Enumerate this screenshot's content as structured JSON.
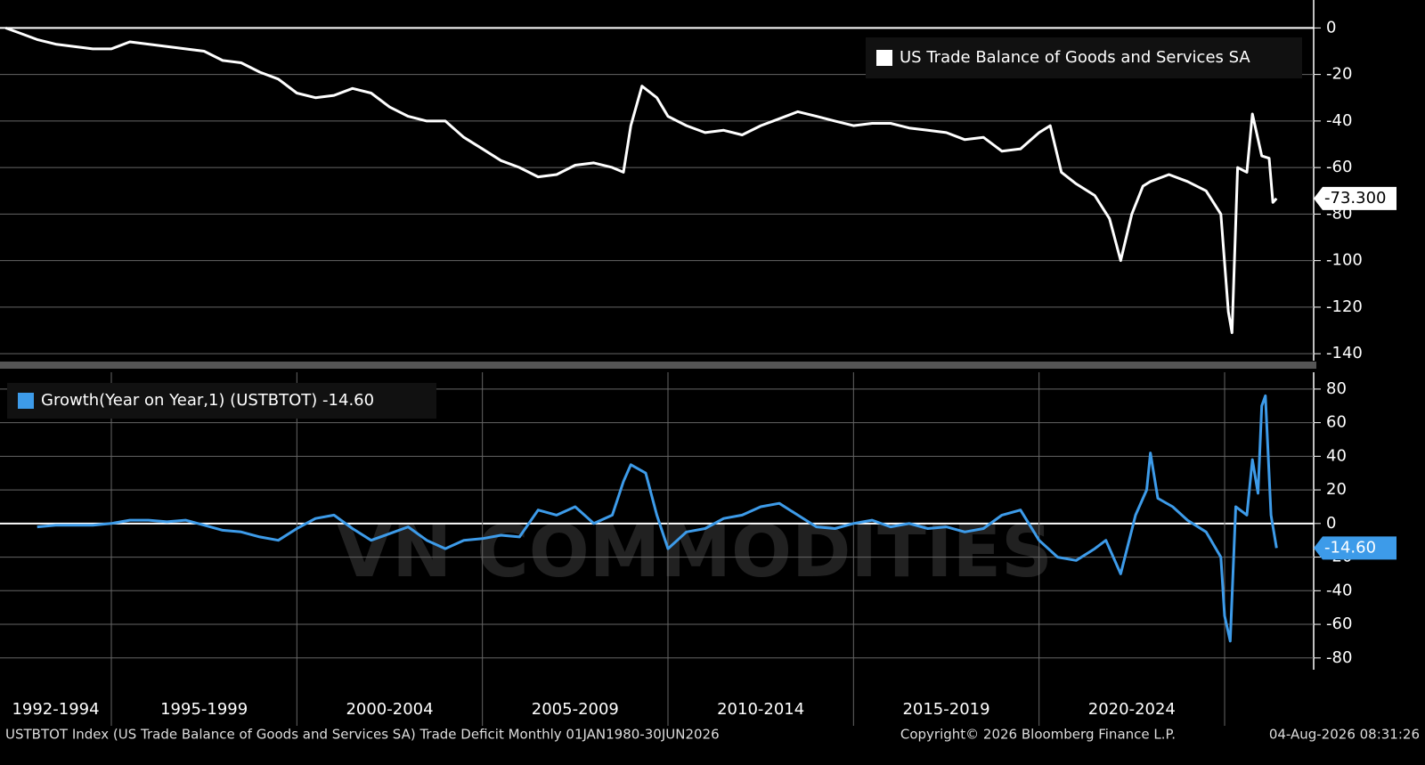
{
  "chart_data": [
    {
      "type": "line",
      "series": [
        {
          "name": "US Trade Balance of Goods and Services SA",
          "color": "#ffffff",
          "last_value_label": "-73.300",
          "x": [
            1992.15,
            1992.5,
            1993,
            1993.5,
            1994,
            1994.5,
            1995,
            1995.5,
            1996,
            1996.5,
            1997,
            1997.5,
            1998,
            1998.5,
            1999,
            1999.5,
            2000,
            2000.5,
            2001,
            2001.5,
            2002,
            2002.5,
            2003,
            2003.5,
            2004,
            2004.5,
            2005,
            2005.5,
            2006,
            2006.5,
            2007,
            2007.5,
            2008,
            2008.5,
            2008.8,
            2009,
            2009.3,
            2009.7,
            2010,
            2010.5,
            2011,
            2011.5,
            2012,
            2012.5,
            2013,
            2013.5,
            2014,
            2014.5,
            2015,
            2015.5,
            2016,
            2016.5,
            2017,
            2017.5,
            2018,
            2018.5,
            2019,
            2019.5,
            2020,
            2020.3,
            2020.6,
            2021,
            2021.5,
            2021.9,
            2022.2,
            2022.5,
            2022.8,
            2023,
            2023.5,
            2024,
            2024.5,
            2024.9,
            2025.1,
            2025.2,
            2025.35,
            2025.6,
            2025.75,
            2026,
            2026.2,
            2026.3,
            2026.4
          ],
          "values": [
            0,
            -2,
            -5,
            -7,
            -8,
            -9,
            -9,
            -6,
            -7,
            -8,
            -9,
            -10,
            -14,
            -15,
            -19,
            -22,
            -28,
            -30,
            -29,
            -26,
            -28,
            -34,
            -38,
            -40,
            -40,
            -47,
            -52,
            -57,
            -60,
            -64,
            -63,
            -59,
            -58,
            -60,
            -62,
            -42,
            -25,
            -30,
            -38,
            -42,
            -45,
            -44,
            -46,
            -42,
            -39,
            -36,
            -38,
            -40,
            -42,
            -41,
            -41,
            -43,
            -44,
            -45,
            -48,
            -47,
            -53,
            -52,
            -45,
            -42,
            -62,
            -67,
            -72,
            -82,
            -100,
            -80,
            -68,
            -66,
            -63,
            -66,
            -70,
            -80,
            -122,
            -131,
            -60,
            -62,
            -37,
            -55,
            -56,
            -75,
            -73.3
          ]
        }
      ],
      "xlim": [
        1992,
        2027.4
      ],
      "ylim": [
        -143,
        12
      ],
      "yticks": [
        0,
        -20,
        -40,
        -60,
        -80,
        -100,
        -120,
        -140
      ],
      "grid": true
    },
    {
      "type": "line",
      "series": [
        {
          "name": "Growth(Year on Year,1) (USTBTOT) -14.60",
          "color": "#3d9be9",
          "last_value_label": "-14.60",
          "x": [
            1993,
            1993.5,
            1994,
            1994.5,
            1995,
            1995.5,
            1996,
            1996.5,
            1997,
            1997.5,
            1998,
            1998.5,
            1999,
            1999.5,
            2000,
            2000.5,
            2001,
            2001.5,
            2002,
            2002.5,
            2003,
            2003.5,
            2004,
            2004.5,
            2005,
            2005.5,
            2006,
            2006.5,
            2007,
            2007.5,
            2008,
            2008.5,
            2008.8,
            2009,
            2009.4,
            2009.7,
            2010,
            2010.5,
            2011,
            2011.5,
            2012,
            2012.5,
            2013,
            2013.5,
            2014,
            2014.5,
            2015,
            2015.5,
            2016,
            2016.5,
            2017,
            2017.5,
            2018,
            2018.5,
            2019,
            2019.5,
            2020,
            2020.5,
            2021,
            2021.5,
            2021.8,
            2022.2,
            2022.6,
            2022.9,
            2023,
            2023.2,
            2023.6,
            2024,
            2024.5,
            2024.9,
            2025,
            2025.15,
            2025.3,
            2025.6,
            2025.75,
            2025.9,
            2026,
            2026.1,
            2026.25,
            2026.4
          ],
          "values": [
            -2,
            -1,
            -1,
            -1,
            0,
            2,
            2,
            1,
            2,
            -1,
            -4,
            -5,
            -8,
            -10,
            -3,
            3,
            5,
            -3,
            -10,
            -6,
            -2,
            -10,
            -15,
            -10,
            -9,
            -7,
            -8,
            8,
            5,
            10,
            0,
            5,
            25,
            35,
            30,
            5,
            -15,
            -5,
            -3,
            3,
            5,
            10,
            12,
            5,
            -2,
            -3,
            0,
            2,
            -2,
            0,
            -3,
            -2,
            -5,
            -3,
            5,
            8,
            -10,
            -20,
            -22,
            -15,
            -10,
            -30,
            5,
            20,
            42,
            15,
            10,
            2,
            -5,
            -20,
            -55,
            -70,
            10,
            5,
            38,
            18,
            70,
            76,
            5,
            -14.6
          ]
        }
      ],
      "xlim": [
        1992,
        2027.4
      ],
      "ylim": [
        -87,
        90
      ],
      "yticks": [
        80,
        60,
        40,
        20,
        0,
        -20,
        -40,
        -60,
        -80
      ],
      "grid": true,
      "xticks": [
        1995,
        2000,
        2005,
        2010,
        2015,
        2020,
        2025
      ],
      "categories": [
        "1992-1994",
        "1995-1999",
        "2000-2004",
        "2005-2009",
        "2010-2014",
        "2015-2019",
        "2020-2024"
      ]
    }
  ],
  "watermark": "VN COMMODITIES",
  "footer": {
    "source": "USTBTOT Index (US Trade Balance of Goods and Services SA) Trade Deficit Monthly 01JAN1980-30JUN2026",
    "copyright": "Copyright© 2026 Bloomberg Finance L.P.",
    "timestamp": "04-Aug-2026 08:31:26"
  }
}
